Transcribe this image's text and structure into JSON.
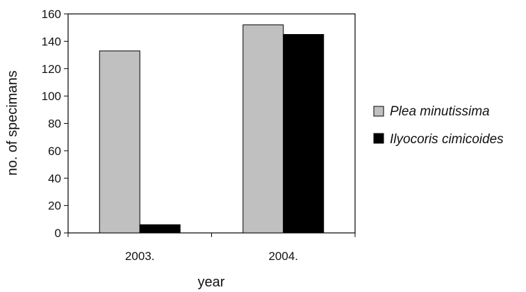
{
  "chart_data": {
    "type": "bar",
    "title": "",
    "xlabel": "year",
    "ylabel": "no. of specimans",
    "categories": [
      "2003.",
      "2004."
    ],
    "series": [
      {
        "name": "Plea minutissima",
        "values": [
          133,
          152
        ],
        "color": "#c0c0c0"
      },
      {
        "name": "Ilyocoris cimicoides",
        "values": [
          6,
          145
        ],
        "color": "#000000"
      }
    ],
    "ylim": [
      0,
      160
    ],
    "yticks": [
      "0",
      "20",
      "40",
      "60",
      "80",
      "100",
      "120",
      "140",
      "160"
    ],
    "grid": false,
    "legend_position": "right"
  }
}
